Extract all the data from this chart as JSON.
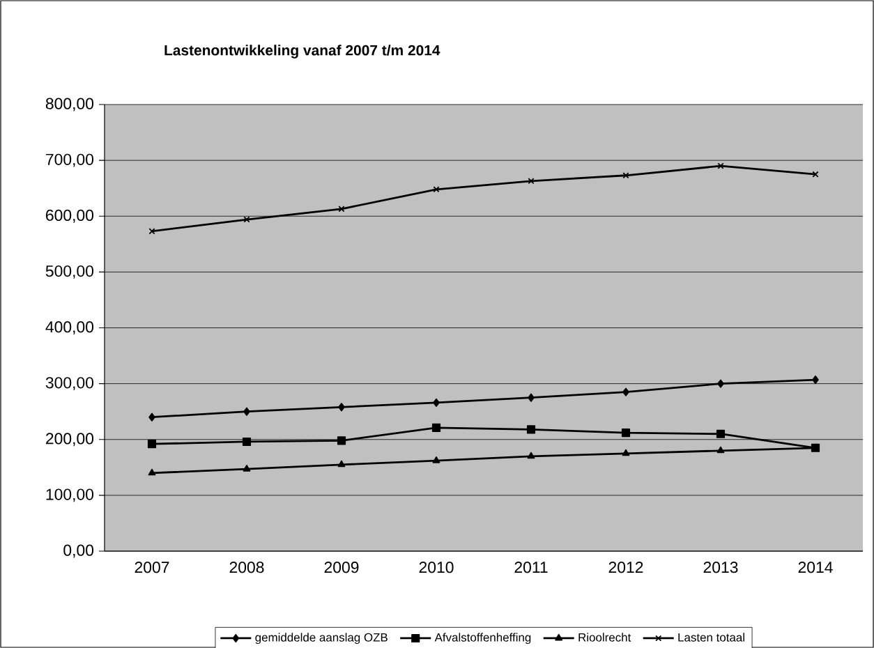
{
  "chart_data": {
    "type": "line",
    "title": "Lastenontwikkeling vanaf 2007 t/m 2014",
    "categories": [
      "2007",
      "2008",
      "2009",
      "2010",
      "2011",
      "2012",
      "2013",
      "2014"
    ],
    "series": [
      {
        "name": "gemiddelde aanslag OZB",
        "color": "#000000",
        "marker": "diamond",
        "values": [
          240,
          250,
          258,
          266,
          275,
          285,
          300,
          307
        ]
      },
      {
        "name": "Afvalstoffenheffing",
        "color": "#000000",
        "marker": "square",
        "values": [
          192,
          196,
          198,
          221,
          218,
          212,
          210,
          185
        ]
      },
      {
        "name": "Rioolrecht",
        "color": "#000000",
        "marker": "triangle",
        "values": [
          140,
          147,
          155,
          162,
          170,
          175,
          180,
          185
        ]
      },
      {
        "name": "Lasten totaal",
        "color": "#000000",
        "marker": "cross",
        "values": [
          573,
          594,
          613,
          648,
          663,
          673,
          690,
          675
        ]
      }
    ],
    "ylim": [
      0,
      800
    ],
    "yticks": [
      {
        "value": 0,
        "label": "0,00"
      },
      {
        "value": 100,
        "label": "100,00"
      },
      {
        "value": 200,
        "label": "200,00"
      },
      {
        "value": 300,
        "label": "300,00"
      },
      {
        "value": 400,
        "label": "400,00"
      },
      {
        "value": 500,
        "label": "500,00"
      },
      {
        "value": 600,
        "label": "600,00"
      },
      {
        "value": 700,
        "label": "700,00"
      },
      {
        "value": 800,
        "label": "800,00"
      }
    ],
    "grid": "y",
    "legend": "bottom",
    "line_style": "solid"
  }
}
